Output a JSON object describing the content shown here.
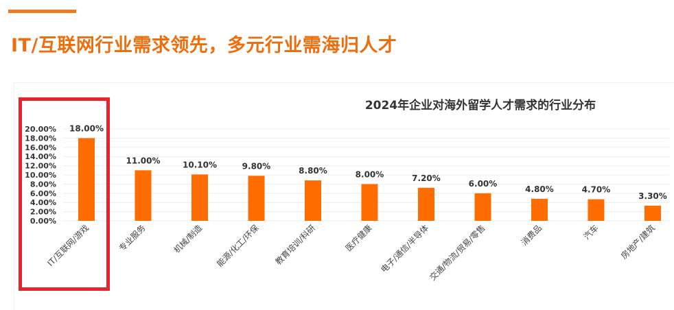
{
  "slide": {
    "title": "IT/互联网行业需求领先，多元行业需海归人才",
    "accent_color": "#f07b1e",
    "title_color": "#ee6e0e",
    "highlight_color": "#e2262c"
  },
  "chart_data": {
    "type": "bar",
    "title": "2024年企业对海外留学人才需求的行业分布",
    "xlabel": "",
    "ylabel": "",
    "ylim": [
      0,
      20
    ],
    "y_ticks": [
      "0.00%",
      "2.00%",
      "4.00%",
      "6.00%",
      "8.00%",
      "10.00%",
      "12.00%",
      "14.00%",
      "16.00%",
      "18.00%",
      "20.00%"
    ],
    "grid": true,
    "bar_color": "#ff6d00",
    "categories": [
      "IT/互联网/游戏",
      "专业服务",
      "机械/制造",
      "能源/化工/环保",
      "教育培训/科研",
      "医疗健康",
      "电子/通信/半导体",
      "交通/物流/贸易/零售",
      "消费品",
      "汽车",
      "房地产/建筑"
    ],
    "values": [
      18.0,
      11.0,
      10.1,
      9.8,
      8.8,
      8.0,
      7.2,
      6.0,
      4.8,
      4.7,
      3.3
    ],
    "data_labels": [
      "18.00%",
      "11.00%",
      "10.10%",
      "9.80%",
      "8.80%",
      "8.00%",
      "7.20%",
      "6.00%",
      "4.80%",
      "4.70%",
      "3.30%"
    ],
    "highlighted_category": "IT/互联网/游戏"
  }
}
